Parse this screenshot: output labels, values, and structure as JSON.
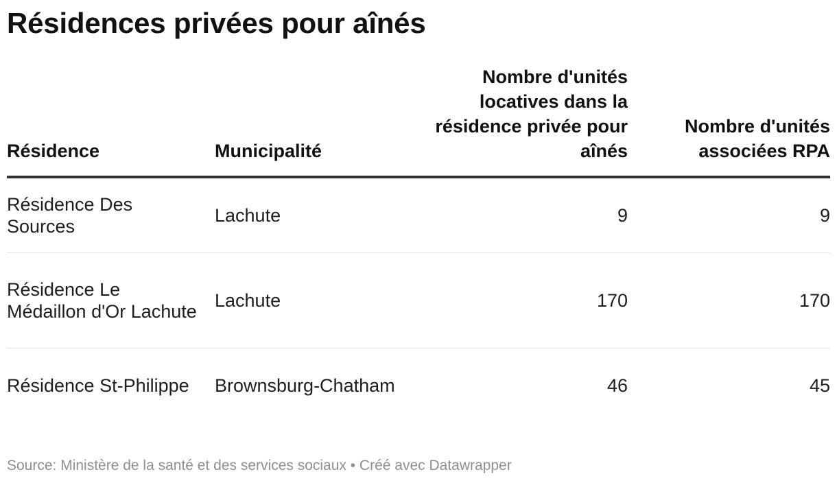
{
  "title": "Résidences privées pour aînés",
  "chart_data": {
    "type": "table",
    "title": "Résidences privées pour aînés",
    "columns": [
      "Résidence",
      "Municipalité",
      "Nombre d'unités locatives dans la résidence privée pour aînés",
      "Nombre d'unités associées RPA"
    ],
    "rows": [
      [
        "Résidence Des Sources",
        "Lachute",
        "9",
        "9"
      ],
      [
        "Résidence Le Médaillon d'Or Lachute",
        "Lachute",
        "170",
        "170"
      ],
      [
        "Résidence St-Philippe",
        "Brownsburg-Chatham",
        "46",
        "45"
      ]
    ]
  },
  "footer": {
    "source": "Source: Ministère de la santé et des services sociaux • Créé avec Datawrapper"
  }
}
